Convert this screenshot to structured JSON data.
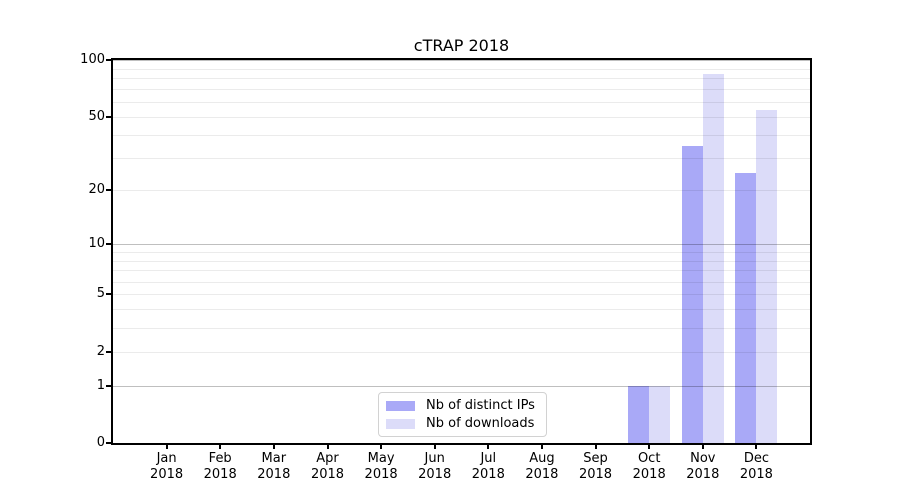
{
  "chart_data": {
    "type": "bar",
    "title": "cTRAP 2018",
    "x": {
      "categories": [
        "Jan",
        "Feb",
        "Mar",
        "Apr",
        "May",
        "Jun",
        "Jul",
        "Aug",
        "Sep",
        "Oct",
        "Nov",
        "Dec"
      ],
      "year": "2018"
    },
    "series": [
      {
        "name": "Nb of distinct IPs",
        "color": "#a9a9f7",
        "values": [
          0,
          0,
          0,
          0,
          0,
          0,
          0,
          0,
          0,
          1,
          35,
          25
        ]
      },
      {
        "name": "Nb of downloads",
        "color": "#dcdcf9",
        "values": [
          0,
          0,
          0,
          0,
          0,
          0,
          0,
          0,
          0,
          1,
          84,
          54
        ]
      }
    ],
    "y_axis": {
      "scale": "log1p",
      "lim": [
        0,
        100
      ],
      "tick_labels": [
        0,
        1,
        2,
        5,
        10,
        20,
        50,
        100
      ],
      "major_gridlines": [
        1,
        10,
        100
      ],
      "minor_gridlines": [
        2,
        3,
        4,
        5,
        6,
        7,
        8,
        9,
        20,
        30,
        40,
        50,
        60,
        70,
        80,
        90
      ]
    },
    "legend": {
      "position": "lower center"
    },
    "grid": true
  },
  "colors": {
    "background": "#ffffff",
    "axis": "#000000",
    "text": "#000000",
    "grid_major": "rgba(0,0,0,0.25)",
    "grid_minor": "rgba(0,0,0,0.08)",
    "legend_border": "#d2d2d2"
  }
}
